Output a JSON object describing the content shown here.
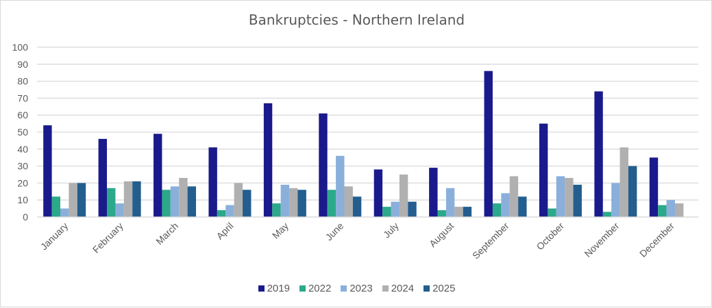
{
  "chart_data": {
    "type": "bar",
    "title": "Bankruptcies - Northern Ireland",
    "xlabel": "",
    "ylabel": "",
    "ylim": [
      0,
      100
    ],
    "yticks": [
      0,
      10,
      20,
      30,
      40,
      50,
      60,
      70,
      80,
      90,
      100
    ],
    "grid": true,
    "legend_position": "bottom",
    "categories": [
      "January",
      "February",
      "March",
      "April",
      "May",
      "June",
      "July",
      "August",
      "September",
      "October",
      "November",
      "December"
    ],
    "series": [
      {
        "name": "2019",
        "color": "#1a1a8c",
        "values": [
          54,
          46,
          49,
          41,
          67,
          61,
          28,
          29,
          86,
          55,
          74,
          35
        ]
      },
      {
        "name": "2022",
        "color": "#2ba98a",
        "values": [
          12,
          17,
          16,
          4,
          8,
          16,
          6,
          4,
          8,
          5,
          3,
          7
        ]
      },
      {
        "name": "2023",
        "color": "#8aafdb",
        "values": [
          5,
          8,
          18,
          7,
          19,
          36,
          9,
          17,
          14,
          24,
          20,
          10
        ]
      },
      {
        "name": "2024",
        "color": "#b0b0b0",
        "values": [
          20,
          21,
          23,
          20,
          17,
          18,
          25,
          6,
          24,
          23,
          41,
          8
        ]
      },
      {
        "name": "2025",
        "color": "#235e8e",
        "values": [
          20,
          21,
          18,
          16,
          16,
          12,
          9,
          6,
          12,
          19,
          30,
          null
        ]
      }
    ]
  }
}
